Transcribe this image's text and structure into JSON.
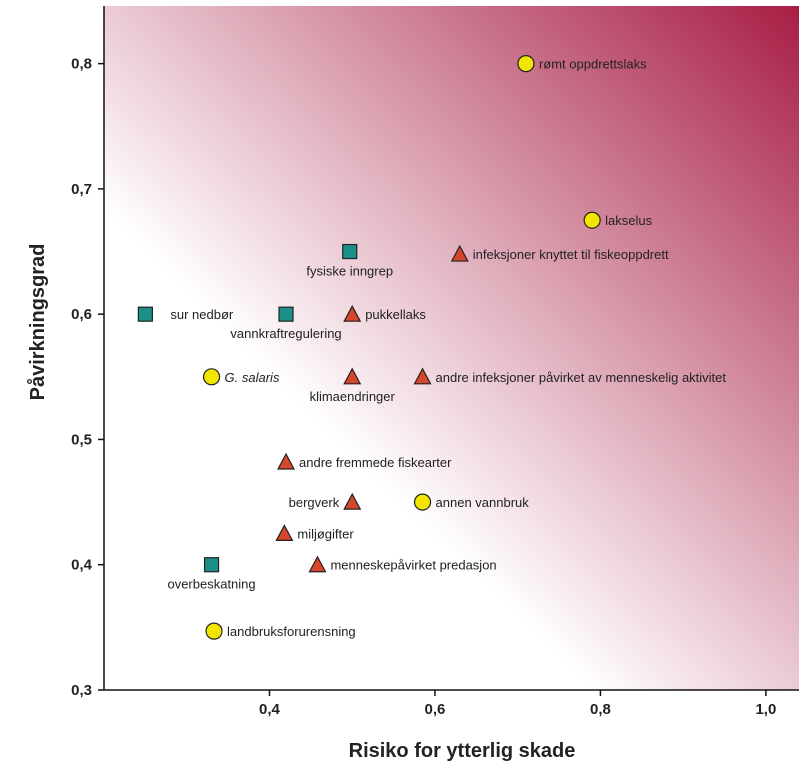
{
  "chart_data": {
    "type": "scatter",
    "title": "",
    "xlabel": "Risiko for ytterlig skade",
    "ylabel": "Påvirkningsgrad",
    "xlim": [
      0.2,
      1.04
    ],
    "ylim": [
      0.3,
      0.846
    ],
    "x_ticks": [
      0.4,
      0.6,
      0.8,
      1.0
    ],
    "x_tick_labels": [
      "0,4",
      "0,6",
      "0,8",
      "1,0"
    ],
    "y_ticks": [
      0.3,
      0.4,
      0.5,
      0.6,
      0.7,
      0.8
    ],
    "y_tick_labels": [
      "0,3",
      "0,4",
      "0,5",
      "0,6",
      "0,7",
      "0,8"
    ],
    "background": "gradient white (bottom-left) to dark red (top-right)",
    "grid": false,
    "series": [
      {
        "marker": "circle",
        "color": "#f2e600",
        "points": [
          {
            "x": 0.71,
            "y": 0.8,
            "label": "rømt oppdrettslaks",
            "label_pos": "right"
          },
          {
            "x": 0.79,
            "y": 0.675,
            "label": "lakselus",
            "label_pos": "right"
          },
          {
            "x": 0.33,
            "y": 0.55,
            "label": "G. salaris",
            "label_pos": "right",
            "italic": true
          },
          {
            "x": 0.585,
            "y": 0.45,
            "label": "annen vannbruk",
            "label_pos": "right"
          },
          {
            "x": 0.333,
            "y": 0.347,
            "label": "landbruksforurensning",
            "label_pos": "right"
          }
        ]
      },
      {
        "marker": "triangle",
        "color": "#d4472a",
        "points": [
          {
            "x": 0.63,
            "y": 0.648,
            "label": "infeksjoner knyttet til fiskeoppdrett",
            "label_pos": "right"
          },
          {
            "x": 0.5,
            "y": 0.6,
            "label": "pukkellaks",
            "label_pos": "right"
          },
          {
            "x": 0.5,
            "y": 0.55,
            "label": "klimaendringer",
            "label_pos": "below"
          },
          {
            "x": 0.585,
            "y": 0.55,
            "label": "andre infeksjoner påvirket av menneskelig aktivitet",
            "label_pos": "right"
          },
          {
            "x": 0.42,
            "y": 0.482,
            "label": "andre fremmede fiskearter",
            "label_pos": "right"
          },
          {
            "x": 0.5,
            "y": 0.45,
            "label": "bergverk",
            "label_pos": "left"
          },
          {
            "x": 0.418,
            "y": 0.425,
            "label": "miljøgifter",
            "label_pos": "right"
          },
          {
            "x": 0.458,
            "y": 0.4,
            "label": "menneskepåvirket predasjon",
            "label_pos": "right"
          }
        ]
      },
      {
        "marker": "square",
        "color": "#1a9088",
        "points": [
          {
            "x": 0.497,
            "y": 0.65,
            "label": "fysiske inngrep",
            "label_pos": "below"
          },
          {
            "x": 0.25,
            "y": 0.6,
            "label": "sur nedbør",
            "label_pos": "right-far"
          },
          {
            "x": 0.42,
            "y": 0.6,
            "label": "vannkraftregulering",
            "label_pos": "below"
          },
          {
            "x": 0.33,
            "y": 0.4,
            "label": "overbeskatning",
            "label_pos": "below"
          }
        ]
      }
    ]
  }
}
